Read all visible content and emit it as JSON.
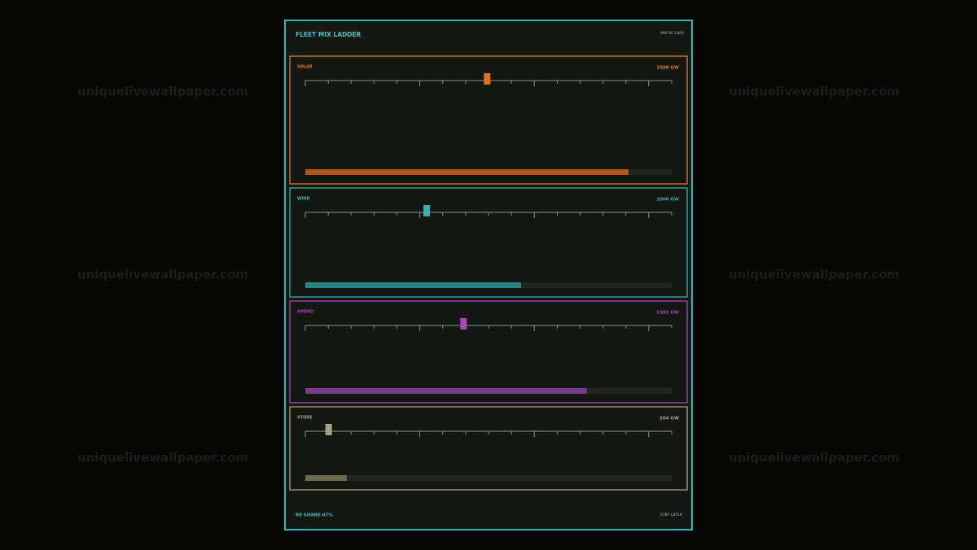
{
  "header": {
    "title": "FLEET MIX LADDER",
    "tag": "MW RE CAPS"
  },
  "watermark": "uniquelivewallpaper.com",
  "chart_data": {
    "type": "ladder",
    "ladder_lim": [
      0,
      3200
    ],
    "ladder_ticks": [
      0,
      200,
      400,
      600,
      800,
      1000,
      1200,
      1400,
      1600,
      1800,
      2000,
      2200,
      2400,
      2600,
      2800,
      3000,
      3200
    ],
    "bar_lim": [
      0,
      1800
    ],
    "series": [
      {
        "name": "SOLAR",
        "color": "#e2741f",
        "bar_color": "#b4561c",
        "values": [
          1588
        ],
        "value_labels": [
          "1588 GW"
        ]
      },
      {
        "name": "WIND",
        "color": "#3cb0b0",
        "bar_color": "#2a8482",
        "values": [
          1060
        ],
        "value_labels": [
          "1060 GW"
        ]
      },
      {
        "name": "HYDRO",
        "color": "#a846b8",
        "bar_color": "#7c3a8c",
        "values": [
          1382
        ],
        "value_labels": [
          "1382 GW"
        ]
      },
      {
        "name": "STORE",
        "color": "#a4a47c",
        "bar_color": "#6c6c52",
        "values": [
          204
        ],
        "value_labels": [
          "204 GW"
        ]
      }
    ]
  },
  "footer": {
    "left": "RE SHARE 67%",
    "right": "STEP LATCH"
  }
}
